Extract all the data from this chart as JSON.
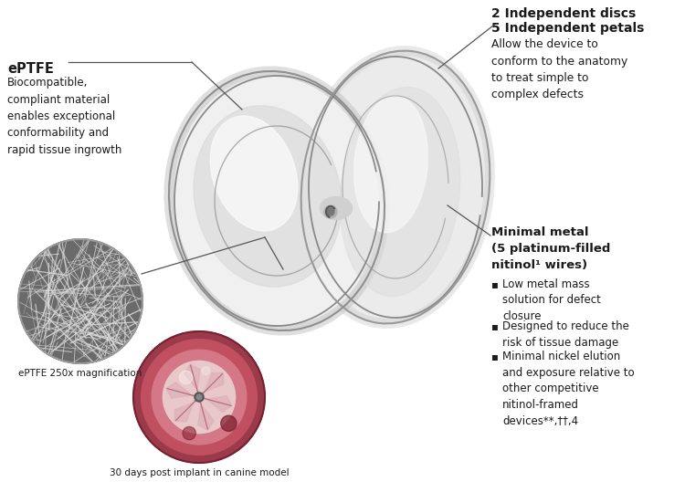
{
  "background_color": "#ffffff",
  "fig_width": 7.5,
  "fig_height": 5.51,
  "dpi": 100,
  "left_title": "ePTFE",
  "left_body": "Biocompatible,\ncompliant material\nenables exceptional\nconformability and\nrapid tissue ingrowth",
  "left_caption1": "ePTFE 250x magnification",
  "left_caption2": "30 days post implant in canine model",
  "right_title1": "2 Independent discs",
  "right_title2": "5 Independent petals",
  "right_body1": "Allow the device to\nconform to the anatomy\nto treat simple to\ncomplex defects",
  "right_title3": "Minimal metal\n(5 platinum-filled\nnitinol¹ wires)",
  "bullet1": "Low metal mass\nsolution for defect\nclosure",
  "bullet2": "Designed to reduce the\nrisk of tissue damage",
  "bullet3": "Minimal nickel elution\nand exposure relative to\nother competitive\nnitinol-framed\ndevices**,††,4",
  "line_color": "#555555",
  "text_color": "#1a1a1a",
  "bullet_symbol": "▪"
}
